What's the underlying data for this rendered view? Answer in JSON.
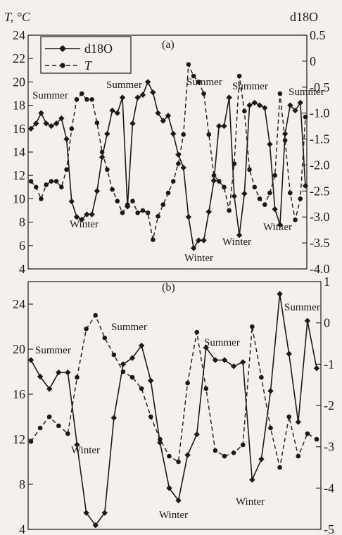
{
  "chart_data": [
    {
      "type": "line",
      "panel_label": "(a)",
      "ylabel_left": "T, °C",
      "ylabel_right": "d18O",
      "ylim_left": [
        4,
        24
      ],
      "ylim_right": [
        -4.0,
        0.5
      ],
      "yticks_left": [
        4,
        6,
        8,
        10,
        12,
        14,
        16,
        18,
        20,
        22,
        24
      ],
      "yticks_right": [
        -4.0,
        -3.5,
        -3.0,
        -2.5,
        -2.0,
        -1.5,
        -1.0,
        -0.5,
        0,
        0.5
      ],
      "ytick_labels_left": [
        "4",
        "6",
        "8",
        "10",
        "12",
        "14",
        "16",
        "18",
        "20",
        "22",
        "24"
      ],
      "ytick_labels_right": [
        "-4.0",
        "-3.5",
        "-3.0",
        "-2.5",
        "-2.0",
        "-1.5",
        "-1.0",
        "-0.5",
        "0",
        "0.5"
      ],
      "legend": {
        "position": "top-left",
        "entries": [
          "d18O",
          "T"
        ]
      },
      "series": [
        {
          "name": "d18O",
          "axis": "right",
          "style": "solid-diamond",
          "values": [
            -1.3,
            -1.2,
            -1.0,
            -1.2,
            -1.25,
            -1.2,
            -1.1,
            -1.5,
            -2.7,
            -3.0,
            -3.05,
            -2.95,
            -2.95,
            -2.5,
            -1.85,
            -1.4,
            -0.95,
            -1.0,
            -0.7,
            -2.8,
            -1.2,
            -0.7,
            -0.65,
            -0.4,
            -0.6,
            -1.0,
            -1.15,
            -1.05,
            -1.4,
            -1.8,
            -2.05,
            -3.0,
            -3.6,
            -3.45,
            -3.45,
            -2.9,
            -2.3,
            -1.25,
            -1.25,
            -0.7,
            -2.6,
            -3.35,
            -2.55,
            -0.85,
            -0.8,
            -0.85,
            -0.9,
            -1.6,
            -2.85,
            -3.15,
            -1.4,
            -0.85,
            -0.95,
            -0.8,
            -2.4
          ]
        },
        {
          "name": "T",
          "axis": "left",
          "style": "dashed-circle",
          "values": [
            11.5,
            11.0,
            10.0,
            11.2,
            11.5,
            11.5,
            11.0,
            12.5,
            16.0,
            18.5,
            19.0,
            18.5,
            18.5,
            16.5,
            14.0,
            12.5,
            10.8,
            9.8,
            8.8,
            9.5,
            9.8,
            8.8,
            9.0,
            8.8,
            6.5,
            8.5,
            9.5,
            10.5,
            11.5,
            13.0,
            15.5,
            21.5,
            20.5,
            20.0,
            19.0,
            15.5,
            12.0,
            11.5,
            11.0,
            9.0,
            13.0,
            20.5,
            17.5,
            12.5,
            11.0,
            10.0,
            9.5,
            10.5,
            12.0,
            19.0,
            15.0,
            10.5,
            8.2,
            10.0,
            17.0
          ]
        }
      ],
      "annotations": [
        "Summer",
        "Summer",
        "Summer",
        "Summer",
        "Summer",
        "Winter",
        "Winter",
        "Winter",
        "Winter"
      ]
    },
    {
      "type": "line",
      "panel_label": "(b)",
      "ylim_left": [
        4,
        26
      ],
      "ylim_right": [
        -5,
        1
      ],
      "yticks_left": [
        4,
        8,
        12,
        16,
        20,
        24
      ],
      "yticks_right": [
        -5,
        -4,
        -3,
        -2,
        -1,
        0,
        1
      ],
      "ytick_labels_left": [
        "4",
        "8",
        "12",
        "16",
        "20",
        "24"
      ],
      "ytick_labels_right": [
        "-5",
        "-4",
        "-3",
        "-2",
        "-1",
        "0",
        "1"
      ],
      "series": [
        {
          "name": "d18O",
          "axis": "right",
          "style": "solid-diamond",
          "values": [
            -0.9,
            -1.3,
            -1.6,
            -1.2,
            -1.2,
            -2.95,
            -4.6,
            -4.9,
            -4.6,
            -2.3,
            -1.0,
            -0.85,
            -0.55,
            -1.4,
            -2.9,
            -4.0,
            -4.3,
            -3.2,
            -2.7,
            -0.6,
            -0.9,
            -0.9,
            -1.05,
            -0.95,
            -3.8,
            -3.3,
            -1.65,
            0.7,
            -0.75,
            -2.4,
            0.05,
            -1.1
          ]
        },
        {
          "name": "T",
          "axis": "left",
          "style": "dashed-circle",
          "values": [
            11.8,
            13.0,
            14.0,
            13.2,
            12.5,
            17.5,
            21.8,
            23.0,
            21.0,
            19.5,
            18.0,
            17.5,
            16.5,
            14.0,
            12.0,
            10.5,
            10.0,
            17.0,
            21.5,
            16.5,
            11.0,
            10.5,
            10.8,
            11.5,
            22.0,
            17.5,
            13.0,
            9.5,
            14.0,
            10.5,
            12.5,
            12.0
          ]
        }
      ],
      "annotations": [
        "Summer",
        "Summer",
        "Summer",
        "Summer",
        "Winter",
        "Winter",
        "Winter"
      ]
    }
  ]
}
